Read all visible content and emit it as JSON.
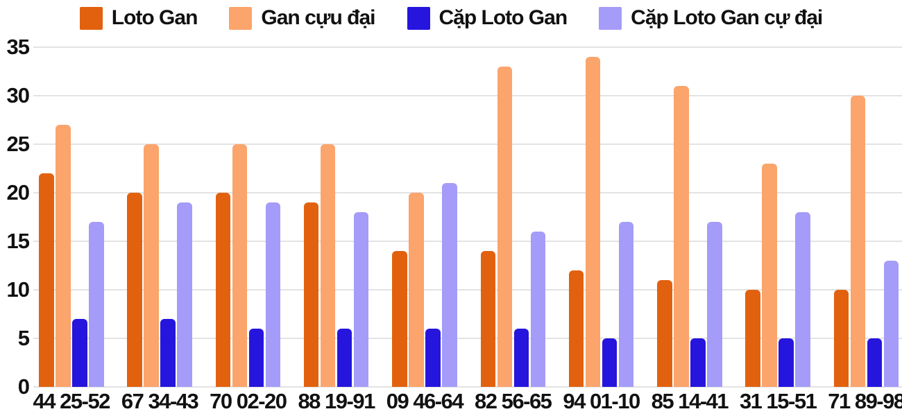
{
  "chart_data": {
    "type": "bar",
    "title": "",
    "xlabel": "",
    "ylabel": "",
    "categories": [
      "44 25-52",
      "67 34-43",
      "70 02-20",
      "88 19-91",
      "09 46-64",
      "82 56-65",
      "94 01-10",
      "85 14-41",
      "31 15-51",
      "71 89-98"
    ],
    "series": [
      {
        "name": "Loto Gan",
        "color": "#e2610e",
        "values": [
          22,
          20,
          20,
          19,
          14,
          14,
          12,
          11,
          10,
          10
        ]
      },
      {
        "name": "Gan cựu đại",
        "color": "#fba46c",
        "values": [
          27,
          25,
          25,
          25,
          20,
          33,
          34,
          31,
          23,
          30
        ]
      },
      {
        "name": "Cặp Loto Gan",
        "color": "#2615dd",
        "values": [
          7,
          7,
          6,
          6,
          6,
          6,
          5,
          5,
          5,
          5
        ]
      },
      {
        "name": "Cặp Loto Gan cự đại",
        "color": "#a49cf8",
        "values": [
          17,
          19,
          19,
          18,
          21,
          16,
          17,
          17,
          18,
          13
        ]
      }
    ],
    "ylim": [
      0,
      35
    ],
    "yticks": [
      0,
      5,
      10,
      15,
      20,
      25,
      30,
      35
    ],
    "grid": true,
    "legend_position": "top"
  },
  "colors": {
    "background": "#ffffff",
    "grid": "#e3e3e3",
    "text": "#111111"
  }
}
